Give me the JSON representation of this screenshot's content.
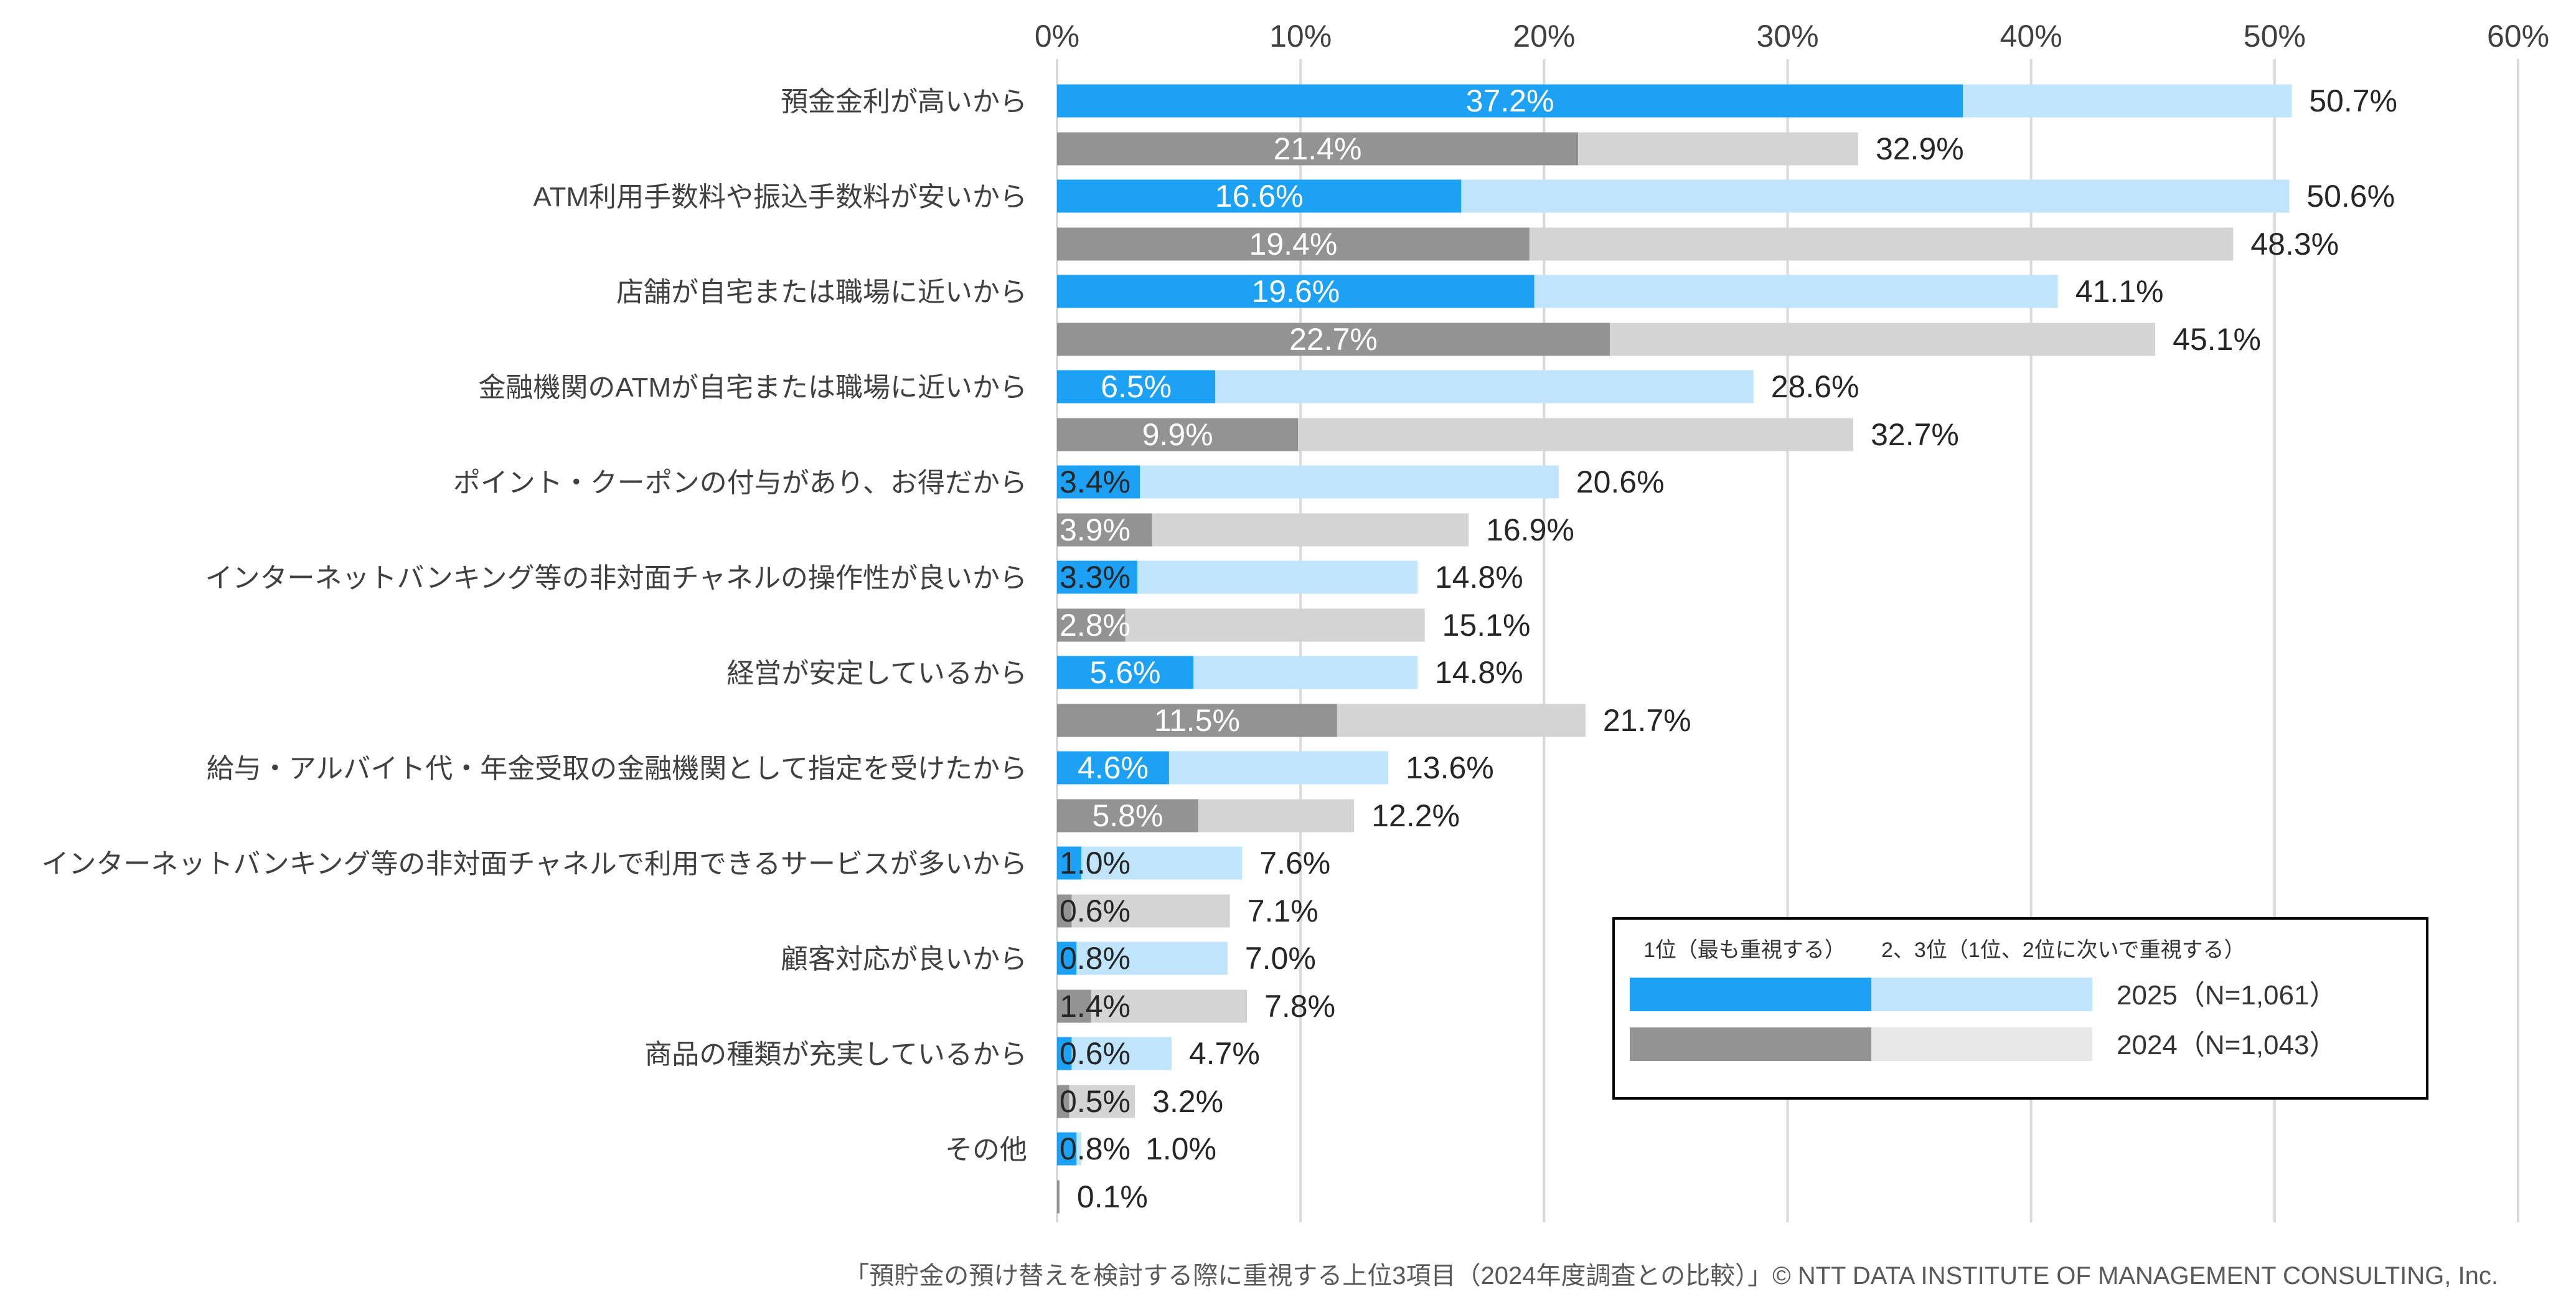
{
  "chart_data": {
    "type": "bar",
    "orientation": "horizontal",
    "stacked": true,
    "xlim": [
      0,
      60
    ],
    "x_ticks": [
      "0%",
      "10%",
      "20%",
      "30%",
      "40%",
      "50%",
      "60%"
    ],
    "grid": true,
    "categories": [
      "預金金利が高いから",
      "ATM利用手数料や振込手数料が安いから",
      "店舗が自宅または職場に近いから",
      "金融機関のATMが自宅または職場に近いから",
      "ポイント・クーポンの付与があり、お得だから",
      "インターネットバンキング等の非対面チャネルの操作性が良いから",
      "経営が安定しているから",
      "給与・アルバイト代・年金受取の金融機関として指定を受けたから",
      "インターネットバンキング等の非対面チャネルで利用できるサービスが多いから",
      "顧客対応が良いから",
      "商品の種類が充実しているから",
      "その他"
    ],
    "series": [
      {
        "name": "2025（N=1,061）",
        "first": [
          37.2,
          16.6,
          19.6,
          6.5,
          3.4,
          3.3,
          5.6,
          4.6,
          1.0,
          0.8,
          0.6,
          0.8
        ],
        "total": [
          50.7,
          50.6,
          41.1,
          28.6,
          20.6,
          14.8,
          14.8,
          13.6,
          7.6,
          7.0,
          4.7,
          1.0
        ],
        "first_labels": [
          "37.2%",
          "16.6%",
          "19.6%",
          "6.5%",
          "3.4%",
          "3.3%",
          "5.6%",
          "4.6%",
          "1.0%",
          "0.8%",
          "0.6%",
          "0.8%"
        ],
        "total_labels": [
          "50.7%",
          "50.6%",
          "41.1%",
          "28.6%",
          "20.6%",
          "14.8%",
          "14.8%",
          "13.6%",
          "7.6%",
          "7.0%",
          "4.7%",
          "1.0%"
        ]
      },
      {
        "name": "2024（N=1,043）",
        "first": [
          21.4,
          19.4,
          22.7,
          9.9,
          3.9,
          2.8,
          11.5,
          5.8,
          0.6,
          1.4,
          0.5,
          0.1
        ],
        "total": [
          32.9,
          48.3,
          45.1,
          32.7,
          16.9,
          15.1,
          21.7,
          12.2,
          7.1,
          7.8,
          3.2,
          0.1
        ],
        "first_labels": [
          "21.4%",
          "19.4%",
          "22.7%",
          "9.9%",
          "3.9%",
          "2.8%",
          "11.5%",
          "5.8%",
          "0.6%",
          "1.4%",
          "0.5%",
          ""
        ],
        "total_labels": [
          "32.9%",
          "48.3%",
          "45.1%",
          "32.7%",
          "16.9%",
          "15.1%",
          "21.7%",
          "12.2%",
          "7.1%",
          "7.8%",
          "3.2%",
          "0.1%"
        ]
      }
    ],
    "legend": {
      "placement": "bottom-right",
      "segment_labels": [
        "1位（最も重視する）",
        "2、3位（1位、2位に次いで重視する）"
      ],
      "series_labels": [
        "2025（N=1,061）",
        "2024（N=1,043）"
      ]
    },
    "colors": {
      "2025_first": "#1DA1F5",
      "2025_rest": "#BFE4FB",
      "2024_first": "#939393",
      "2024_rest": "#D4D4D4",
      "grid": "#D9D9D9"
    }
  },
  "footer": "「預貯金の預け替えを検討する際に重視する上位3項目（2024年度調査との比較）」© NTT DATA INSTITUTE OF MANAGEMENT CONSULTING, Inc."
}
